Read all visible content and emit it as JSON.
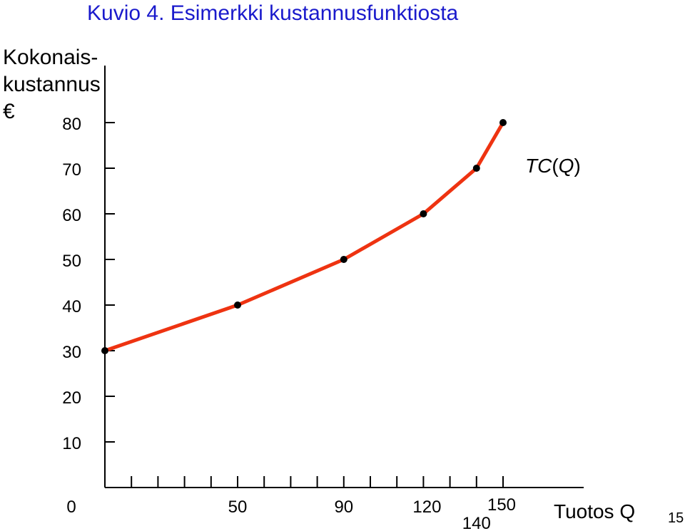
{
  "title": "Kuvio 4. Esimerkki kustannusfunktiosta",
  "page_number": "15",
  "chart_data": {
    "type": "line",
    "title": "Kuvio 4. Esimerkki kustannusfunktiosta",
    "ylabel": "Kokonais-\nkustannus\n€",
    "xlabel": "Tuotos Q",
    "series": [
      {
        "name": "TC(Q)",
        "color": "#ee3311",
        "x": [
          0,
          50,
          90,
          120,
          140,
          150
        ],
        "y": [
          30,
          40,
          50,
          60,
          70,
          80
        ]
      }
    ],
    "y_ticks": [
      10,
      20,
      30,
      40,
      50,
      60,
      70,
      80
    ],
    "y_tick_labels": [
      "10",
      "20",
      "30",
      "40",
      "50",
      "60",
      "70",
      "80"
    ],
    "x_tick_labels": [
      {
        "value": 0,
        "label": "0"
      },
      {
        "value": 50,
        "label": "50"
      },
      {
        "value": 90,
        "label": "90"
      },
      {
        "value": 120,
        "label": "120"
      },
      {
        "value": 140,
        "label": "140"
      },
      {
        "value": 150,
        "label": "150"
      }
    ],
    "x_minor_ticks": [
      10,
      20,
      30,
      40,
      50,
      60,
      70,
      80,
      90,
      100,
      110,
      120,
      130,
      140,
      150
    ],
    "series_label": {
      "prefix": "TC(",
      "var": "Q",
      "suffix": ")"
    },
    "xlim": [
      0,
      180
    ],
    "ylim": [
      0,
      88
    ],
    "grid": false,
    "legend": "none"
  }
}
